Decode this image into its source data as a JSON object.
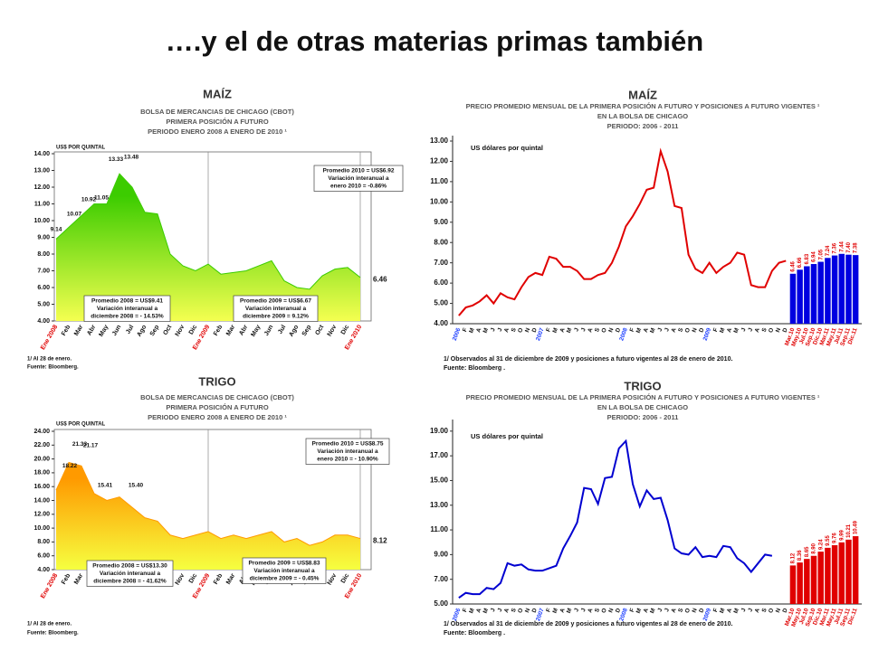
{
  "title": "….y el de otras materias primas también",
  "chart_data": [
    {
      "type": "area",
      "title": "MAÍZ",
      "subtitle": [
        "BOLSA DE MERCANCIAS DE CHICAGO (CBOT)",
        "PRIMERA POSICIÓN A FUTURO",
        "PERIODO ENERO 2008 A ENERO DE 2010 ¹"
      ],
      "y_label": "US$ POR QUINTAL",
      "categories": [
        "Ene 2008",
        "Feb",
        "Mar",
        "Abr",
        "May",
        "Jun",
        "Jul",
        "Ago",
        "Sep",
        "Oct",
        "Nov",
        "Dic",
        "Ene 2009",
        "Feb",
        "Mar",
        "Abr",
        "May",
        "Jun",
        "Jul",
        "Ago",
        "Sep",
        "Oct",
        "Nov",
        "Dic",
        "Ene 2010"
      ],
      "values": [
        8.9,
        9.6,
        10.3,
        11.0,
        11.0,
        12.8,
        12.0,
        10.5,
        10.4,
        8.0,
        7.3,
        7.0,
        7.4,
        6.8,
        6.9,
        7.0,
        7.3,
        7.6,
        6.4,
        6.0,
        5.9,
        6.7,
        7.1,
        7.2,
        6.6
      ],
      "colors": [
        "#3ccc00",
        "#f4ff50"
      ],
      "ylim": [
        4,
        14
      ],
      "yticks": [
        {
          "value": 4,
          "label": "4.00"
        },
        {
          "value": 5,
          "label": "5.00"
        },
        {
          "value": 6,
          "label": "6.00"
        },
        {
          "value": 7,
          "label": "7.00"
        },
        {
          "value": 8,
          "label": "8.00"
        },
        {
          "value": 9,
          "label": "9.00"
        },
        {
          "value": 10,
          "label": "10.00"
        },
        {
          "value": 11,
          "label": "11.00"
        },
        {
          "value": 12,
          "label": "12.00"
        },
        {
          "value": 13,
          "label": "13.00"
        },
        {
          "value": 14,
          "label": "14.00"
        }
      ],
      "peak_labels": [
        {
          "value": 9.14,
          "label": "9.14"
        },
        {
          "value": 10.07,
          "label": "10.07"
        },
        {
          "value": 10.92,
          "label": "10.92"
        },
        {
          "value": 11.05,
          "label": "11.05"
        },
        {
          "value": 13.33,
          "label": "13.33"
        },
        {
          "value": 13.48,
          "label": "13.48"
        },
        {
          "value": 6.46,
          "label": "6.46"
        }
      ],
      "notes": [
        [
          "Promedio 2010 = US$6.92",
          "Variación interanual a",
          "enero 2010 = -0.86%"
        ],
        [
          "Promedio 2008 = US$9.41",
          "Variación interanual a",
          "diciembre 2008 = - 14.53%"
        ],
        [
          "Promedio 2009 = US$6.67",
          "Variación interanual a",
          "diciembre 2009 = 9.12%"
        ]
      ],
      "footnotes": [
        "1/ Al 28 de enero.",
        "Fuente: Bloomberg."
      ]
    },
    {
      "type": "line",
      "title": "MAÍZ",
      "subtitle": [
        "PRECIO PROMEDIO MENSUAL DE LA PRIMERA POSICIÓN A FUTURO Y POSICIONES A FUTURO VIGENTES ¹",
        "EN LA BOLSA DE CHICAGO",
        "PERIODO: 2006 - 2011"
      ],
      "y_label": "US dólares por quintal",
      "categories": [
        "2006",
        "F",
        "M",
        "A",
        "M",
        "J",
        "J",
        "A",
        "S",
        "O",
        "N",
        "D",
        "2007",
        "F",
        "M",
        "A",
        "M",
        "J",
        "J",
        "A",
        "S",
        "O",
        "N",
        "D",
        "2008",
        "F",
        "M",
        "A",
        "M",
        "J",
        "J",
        "A",
        "S",
        "O",
        "N",
        "D",
        "2009",
        "F",
        "M",
        "A",
        "M",
        "J",
        "J",
        "A",
        "S",
        "O",
        "N",
        "D",
        "Mar.10",
        "May.10",
        "Jul.10",
        "Sep.10",
        "Dic.10",
        "Mar.11",
        "May.11",
        "Jul.11",
        "Sep.11",
        "Dic.11"
      ],
      "series": [
        {
          "type": "line",
          "color": "#e00000",
          "values": [
            4.4,
            4.8,
            4.9,
            5.1,
            5.4,
            5.0,
            5.5,
            5.3,
            5.2,
            5.8,
            6.3,
            6.5,
            6.4,
            7.3,
            7.2,
            6.8,
            6.8,
            6.6,
            6.2,
            6.2,
            6.4,
            6.5,
            7.0,
            7.8,
            8.8,
            9.3,
            9.9,
            10.6,
            10.7,
            12.5,
            11.5,
            9.8,
            9.7,
            7.4,
            6.7,
            6.5,
            7.0,
            6.5,
            6.8,
            7.0,
            7.5,
            7.4,
            5.9,
            5.8,
            5.8,
            6.6,
            7.0,
            7.1,
            null,
            null,
            null,
            null,
            null,
            null,
            null,
            null,
            null,
            null
          ]
        },
        {
          "type": "bar",
          "color": "#0000e0",
          "values": [
            null,
            null,
            null,
            null,
            null,
            null,
            null,
            null,
            null,
            null,
            null,
            null,
            null,
            null,
            null,
            null,
            null,
            null,
            null,
            null,
            null,
            null,
            null,
            null,
            null,
            null,
            null,
            null,
            null,
            null,
            null,
            null,
            null,
            null,
            null,
            null,
            null,
            null,
            null,
            null,
            null,
            null,
            null,
            null,
            null,
            null,
            null,
            null,
            6.46,
            6.66,
            6.83,
            6.94,
            7.05,
            7.24,
            7.36,
            7.44,
            7.4,
            7.38
          ],
          "value_labels": [
            null,
            null,
            null,
            null,
            null,
            null,
            null,
            null,
            null,
            null,
            null,
            null,
            null,
            null,
            null,
            null,
            null,
            null,
            null,
            null,
            null,
            null,
            null,
            null,
            null,
            null,
            null,
            null,
            null,
            null,
            null,
            null,
            null,
            null,
            null,
            null,
            null,
            null,
            null,
            null,
            null,
            null,
            null,
            null,
            null,
            null,
            null,
            null,
            "6.46",
            "6.66",
            "6.83",
            "6.94",
            "7.05",
            "7.24",
            "7.36",
            "7.44",
            "7.40",
            "7.38"
          ]
        }
      ],
      "ylim": [
        4,
        13
      ],
      "yticks": [
        {
          "value": 4,
          "label": "4.00"
        },
        {
          "value": 5,
          "label": "5.00"
        },
        {
          "value": 6,
          "label": "6.00"
        },
        {
          "value": 7,
          "label": "7.00"
        },
        {
          "value": 8,
          "label": "8.00"
        },
        {
          "value": 9,
          "label": "9.00"
        },
        {
          "value": 10,
          "label": "10.00"
        },
        {
          "value": 11,
          "label": "11.00"
        },
        {
          "value": 12,
          "label": "12.00"
        },
        {
          "value": 13,
          "label": "13.00"
        }
      ],
      "footnotes": [
        "1/ Observados al 31 de diciembre de 2009 y posiciones a futuro vigentes al 28 de enero de 2010.",
        "Fuente: Bloomberg ."
      ]
    },
    {
      "type": "area",
      "title": "TRIGO",
      "subtitle": [
        "BOLSA DE MERCANCIAS DE CHICAGO (CBOT)",
        "PRIMERA POSICIÓN A FUTURO",
        "PERIODO ENERO 2008 A ENERO DE 2010 ¹"
      ],
      "y_label": "US$ POR QUINTAL",
      "categories": [
        "Ene 2008",
        "Feb",
        "Mar",
        "Abr",
        "May",
        "Jun",
        "Jul",
        "Ago",
        "Sep",
        "Oct",
        "Nov",
        "Dic",
        "Ene 2009",
        "Feb",
        "Mar",
        "Abr",
        "May",
        "Jun",
        "Jul",
        "Ago",
        "Sep",
        "Oct",
        "Nov",
        "Dic",
        "Ene 2010"
      ],
      "values": [
        15.5,
        19.5,
        19.0,
        15.0,
        14.0,
        14.5,
        13.0,
        11.5,
        11.0,
        9.0,
        8.5,
        9.0,
        9.5,
        8.5,
        9.0,
        8.5,
        9.0,
        9.5,
        8.0,
        8.5,
        7.5,
        8.0,
        9.0,
        9.0,
        8.5
      ],
      "colors": [
        "#ff9a00",
        "#f6ff40"
      ],
      "ylim": [
        4,
        24
      ],
      "yticks": [
        {
          "value": 4,
          "label": "4.00"
        },
        {
          "value": 6,
          "label": "6.00"
        },
        {
          "value": 8,
          "label": "8.00"
        },
        {
          "value": 10,
          "label": "10.00"
        },
        {
          "value": 12,
          "label": "12.00"
        },
        {
          "value": 14,
          "label": "14.00"
        },
        {
          "value": 16,
          "label": "16.00"
        },
        {
          "value": 18,
          "label": "18.00"
        },
        {
          "value": 20,
          "label": "20.00"
        },
        {
          "value": 22,
          "label": "22.00"
        },
        {
          "value": 24,
          "label": "24.00"
        }
      ],
      "peak_labels": [
        {
          "value": 18.22,
          "label": "18.22"
        },
        {
          "value": 21.33,
          "label": "21.33"
        },
        {
          "value": 21.17,
          "label": "21.17"
        },
        {
          "value": 15.41,
          "label": "15.41"
        },
        {
          "value": 15.4,
          "label": "15.40"
        },
        {
          "value": 8.12,
          "label": "8.12"
        }
      ],
      "notes": [
        [
          "Promedio 2010 = US$8.75",
          "Variación interanual a",
          "enero 2010 = - 10.90%"
        ],
        [
          "Promedio 2008 = US$13.30",
          "Variación interanual a",
          "diciembre 2008 = - 41.62%"
        ],
        [
          "Promedio 2009 = US$8.83",
          "Variación interanual a",
          "diciembre 2009 = - 0.45%"
        ]
      ],
      "footnotes": [
        "1/ Al 28 de enero.",
        "Fuente: Bloomberg."
      ]
    },
    {
      "type": "line",
      "title": "TRIGO",
      "subtitle": [
        "PRECIO PROMEDIO MENSUAL DE LA PRIMERA POSICIÓN A FUTURO Y POSICIONES A FUTURO VIGENTES ¹",
        "EN LA BOLSA DE CHICAGO",
        "PERIODO: 2006 - 2011"
      ],
      "y_label": "US dólares por quintal",
      "categories": [
        "2006",
        "F",
        "M",
        "A",
        "M",
        "J",
        "J",
        "A",
        "S",
        "O",
        "N",
        "D",
        "2007",
        "F",
        "M",
        "A",
        "M",
        "J",
        "J",
        "A",
        "S",
        "O",
        "N",
        "D",
        "2008",
        "F",
        "M",
        "A",
        "M",
        "J",
        "J",
        "A",
        "S",
        "O",
        "N",
        "D",
        "2009",
        "F",
        "M",
        "A",
        "M",
        "J",
        "J",
        "A",
        "S",
        "O",
        "N",
        "D",
        "Mar.10",
        "May.10",
        "Jul.10",
        "Sep.10",
        "Dic.10",
        "Mar.11",
        "May.11",
        "Jul.11",
        "Sep.11",
        "Dic.11"
      ],
      "series": [
        {
          "type": "line",
          "color": "#0000d0",
          "values": [
            5.5,
            5.9,
            5.8,
            5.8,
            6.3,
            6.2,
            6.7,
            8.3,
            8.1,
            8.2,
            7.8,
            7.7,
            7.7,
            7.9,
            8.1,
            9.5,
            10.5,
            11.6,
            14.4,
            14.3,
            13.1,
            15.2,
            15.3,
            17.6,
            18.2,
            14.7,
            12.9,
            14.2,
            13.5,
            13.6,
            11.8,
            9.5,
            9.1,
            9.0,
            9.6,
            8.8,
            8.9,
            8.8,
            9.7,
            9.6,
            8.7,
            8.3,
            7.6,
            8.3,
            9.0,
            8.9,
            null,
            null,
            null,
            null,
            null,
            null,
            null,
            null,
            null,
            null,
            null,
            null
          ]
        },
        {
          "type": "bar",
          "color": "#e00000",
          "values": [
            null,
            null,
            null,
            null,
            null,
            null,
            null,
            null,
            null,
            null,
            null,
            null,
            null,
            null,
            null,
            null,
            null,
            null,
            null,
            null,
            null,
            null,
            null,
            null,
            null,
            null,
            null,
            null,
            null,
            null,
            null,
            null,
            null,
            null,
            null,
            null,
            null,
            null,
            null,
            null,
            null,
            null,
            null,
            null,
            null,
            null,
            null,
            null,
            8.12,
            8.36,
            8.65,
            8.9,
            9.24,
            9.55,
            9.76,
            9.99,
            10.21,
            10.49
          ],
          "value_labels": [
            null,
            null,
            null,
            null,
            null,
            null,
            null,
            null,
            null,
            null,
            null,
            null,
            null,
            null,
            null,
            null,
            null,
            null,
            null,
            null,
            null,
            null,
            null,
            null,
            null,
            null,
            null,
            null,
            null,
            null,
            null,
            null,
            null,
            null,
            null,
            null,
            null,
            null,
            null,
            null,
            null,
            null,
            null,
            null,
            null,
            null,
            null,
            null,
            "8.12",
            "8.36",
            "8.65",
            "8.90",
            "9.24",
            "9.55",
            "9.76",
            "9.99",
            "10.21",
            "10.49"
          ]
        }
      ],
      "ylim": [
        5,
        19.5
      ],
      "yticks": [
        {
          "value": 5,
          "label": "5.00"
        },
        {
          "value": 7,
          "label": "7.00"
        },
        {
          "value": 9,
          "label": "9.00"
        },
        {
          "value": 11,
          "label": "11.00"
        },
        {
          "value": 13,
          "label": "13.00"
        },
        {
          "value": 15,
          "label": "15.00"
        },
        {
          "value": 17,
          "label": "17.00"
        },
        {
          "value": 19,
          "label": "19.00"
        }
      ],
      "footnotes": [
        "1/ Observados al 31 de diciembre de 2009 y posiciones a futuro vigentes al 28 de enero de 2010.",
        "Fuente: Bloomberg ."
      ]
    }
  ]
}
